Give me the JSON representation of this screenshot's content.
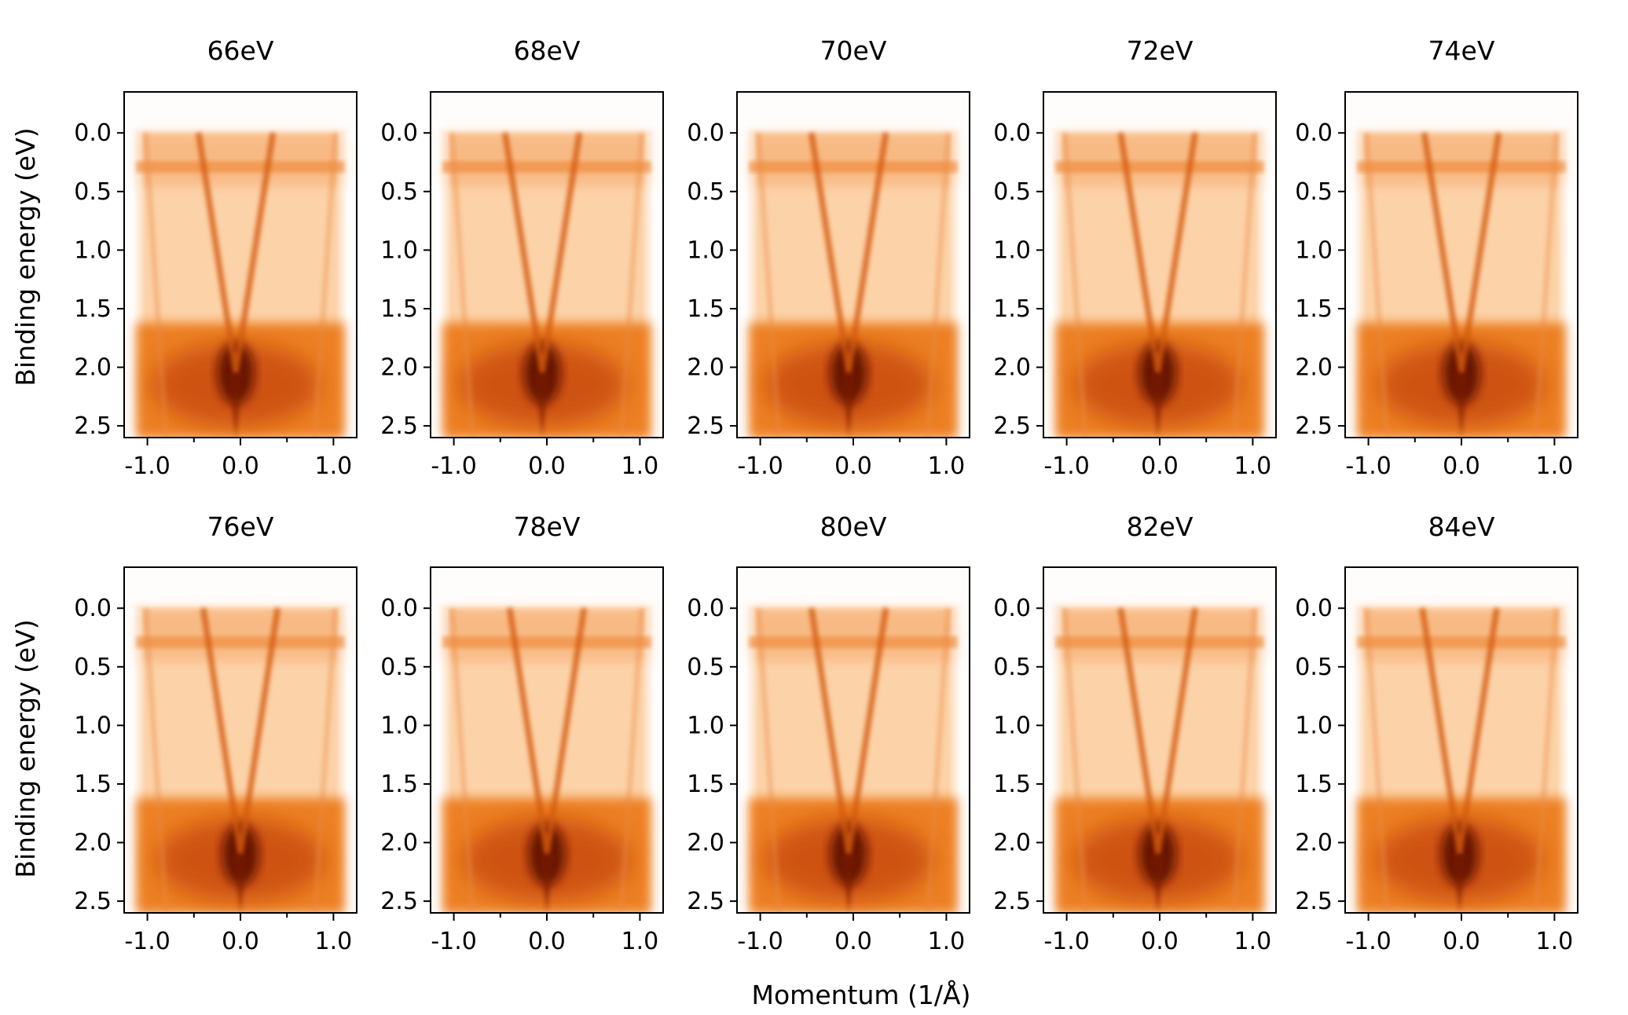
{
  "chart_data": {
    "type": "heatmap",
    "description_units": {
      "x": "1/Å",
      "y": "eV"
    },
    "xlabel": "Momentum (1/Å)",
    "ylabel": "Binding energy (eV)",
    "xlim": [
      -1.25,
      1.25
    ],
    "ylim": [
      -0.35,
      2.6
    ],
    "x_ticks": [
      -1.0,
      0.0,
      1.0
    ],
    "x_tick_labels": [
      "-1.0",
      "0.0",
      "1.0"
    ],
    "x_minor_ticks": [
      -0.5,
      0.5
    ],
    "y_ticks": [
      0.0,
      0.5,
      1.0,
      1.5,
      2.0,
      2.5
    ],
    "y_tick_labels": [
      "0.0",
      "0.5",
      "1.0",
      "1.5",
      "2.0",
      "2.5"
    ],
    "colormap": {
      "low": "#fffdfb",
      "mid": "#f59a45",
      "high": "#5a0a00"
    },
    "panels": [
      {
        "title": "66eV",
        "dirac_point_eV": 2.05,
        "dirac_k": -0.05
      },
      {
        "title": "68eV",
        "dirac_point_eV": 2.05,
        "dirac_k": -0.05
      },
      {
        "title": "70eV",
        "dirac_point_eV": 2.05,
        "dirac_k": -0.05
      },
      {
        "title": "72eV",
        "dirac_point_eV": 2.05,
        "dirac_k": -0.02
      },
      {
        "title": "74eV",
        "dirac_point_eV": 2.05,
        "dirac_k": 0.0
      },
      {
        "title": "76eV",
        "dirac_point_eV": 2.1,
        "dirac_k": 0.0
      },
      {
        "title": "78eV",
        "dirac_point_eV": 2.1,
        "dirac_k": 0.0
      },
      {
        "title": "80eV",
        "dirac_point_eV": 2.1,
        "dirac_k": -0.05
      },
      {
        "title": "82eV",
        "dirac_point_eV": 2.1,
        "dirac_k": -0.02
      },
      {
        "title": "84eV",
        "dirac_point_eV": 2.1,
        "dirac_k": -0.02
      }
    ]
  }
}
